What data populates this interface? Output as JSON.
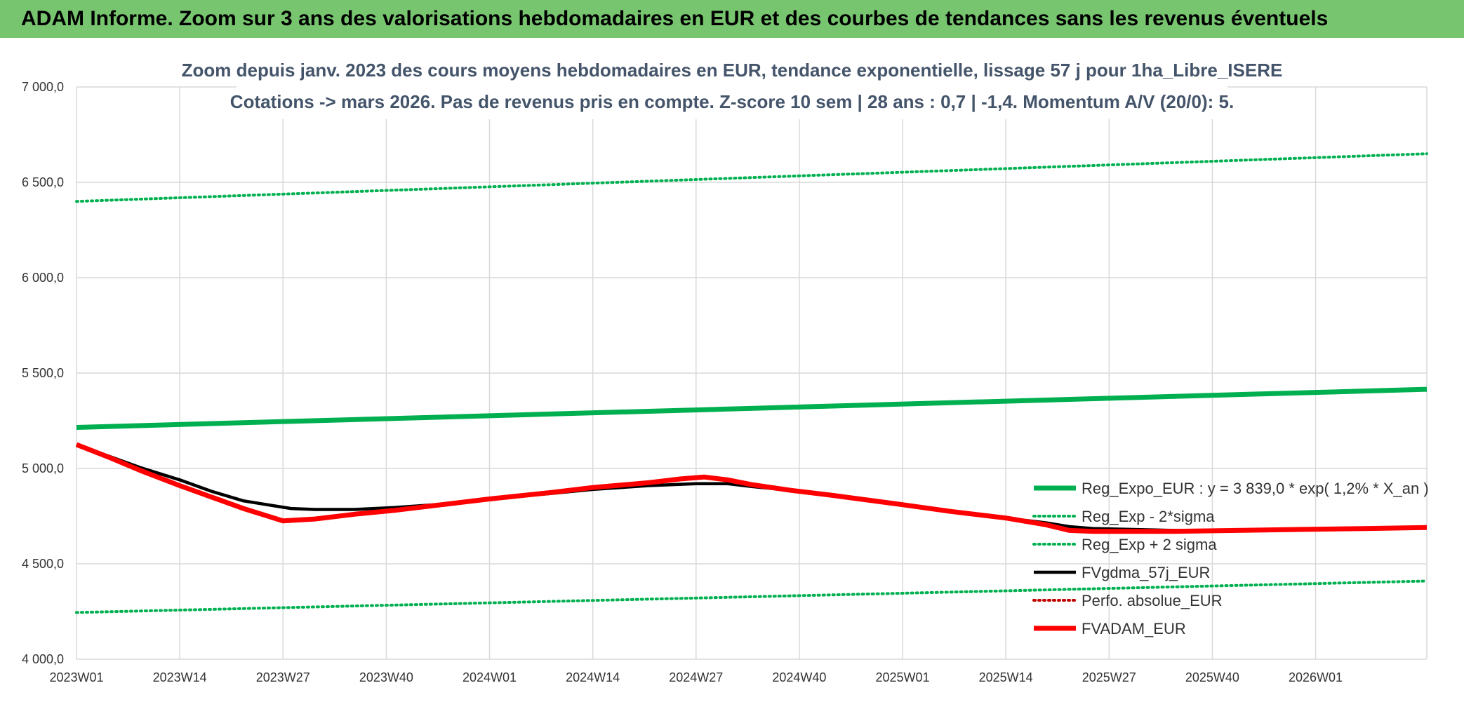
{
  "banner": {
    "title": "ADAM Informe. Zoom sur 3 ans des valorisations hebdomadaires en EUR et des courbes de tendances sans les revenus éventuels"
  },
  "colors": {
    "banner_bg": "#77c56f",
    "green": "#00b050",
    "black": "#000000",
    "red": "#ff0000",
    "dark_red": "#c00000",
    "grid": "#d9d9d9",
    "title_text": "#44546a"
  },
  "chart_data": {
    "type": "line",
    "title": "Zoom depuis janv. 2023 des cours moyens hebdomadaires en EUR, tendance exponentielle, lissage 57 j pour 1ha_Libre_ISERE",
    "subtitle": "Cotations -> mars 2026. Pas de revenus pris en compte. Z-score 10 sem | 28 ans : 0,7 | -1,4. Momentum A/V (20/0): 5.",
    "xlabel": "",
    "ylabel": "",
    "ylim": [
      4000,
      7000
    ],
    "y_ticks": [
      "4 000,0",
      "4 500,0",
      "5 000,0",
      "5 500,0",
      "6 000,0",
      "6 500,0",
      "7 000,0"
    ],
    "y_tick_values": [
      4000,
      4500,
      5000,
      5500,
      6000,
      6500,
      7000
    ],
    "x_ticks": [
      "2023W01",
      "2023W14",
      "2023W27",
      "2023W40",
      "2024W01",
      "2024W14",
      "2024W27",
      "2024W40",
      "2025W01",
      "2025W14",
      "2025W27",
      "2025W40",
      "2026W01"
    ],
    "x_range_weeks": [
      0,
      170
    ],
    "grid": true,
    "legend_position": "bottom-right",
    "series": [
      {
        "name": "Reg_Expo_EUR : y = 3 839,0 * exp( 1,2% *  X_an )",
        "style": "solid-thick",
        "color": "#00b050",
        "x": [
          0,
          170
        ],
        "values": [
          5215,
          5415
        ]
      },
      {
        "name": "Reg_Exp - 2*sigma",
        "style": "dotted",
        "color": "#00b050",
        "x": [
          0,
          170
        ],
        "values": [
          4245,
          4410
        ]
      },
      {
        "name": "Reg_Exp + 2 sigma",
        "style": "dotted",
        "color": "#00b050",
        "x": [
          0,
          170
        ],
        "values": [
          6400,
          6650
        ]
      },
      {
        "name": "FVgdma_57j_EUR",
        "style": "solid",
        "color": "#000000",
        "x": [
          0,
          4,
          8,
          13,
          17,
          21,
          24,
          27,
          30,
          35,
          40,
          47,
          52,
          60,
          65,
          72,
          78,
          82,
          85,
          90,
          95,
          104,
          110,
          117,
          122,
          125,
          128,
          133,
          138,
          146,
          154,
          162,
          170
        ],
        "values": [
          5125,
          5065,
          5005,
          4940,
          4880,
          4830,
          4810,
          4790,
          4785,
          4785,
          4795,
          4815,
          4840,
          4870,
          4890,
          4910,
          4920,
          4920,
          4905,
          4885,
          4860,
          4810,
          4775,
          4740,
          4715,
          4695,
          4685,
          4680,
          4675,
          4675,
          4680,
          4685,
          4690
        ]
      },
      {
        "name": "Perfo. absolue_EUR",
        "style": "dotted",
        "color": "#c00000",
        "x": [],
        "values": []
      },
      {
        "name": "FVADAM_EUR",
        "style": "solid-thick",
        "color": "#ff0000",
        "x": [
          0,
          4,
          8,
          13,
          17,
          21,
          26,
          30,
          35,
          40,
          47,
          52,
          60,
          65,
          72,
          76,
          79,
          82,
          85,
          90,
          95,
          104,
          110,
          117,
          122,
          125,
          128,
          133,
          138,
          146,
          154,
          162,
          170
        ],
        "values": [
          5125,
          5060,
          4990,
          4910,
          4850,
          4790,
          4725,
          4735,
          4760,
          4780,
          4815,
          4840,
          4875,
          4900,
          4925,
          4945,
          4955,
          4940,
          4915,
          4885,
          4860,
          4810,
          4775,
          4740,
          4705,
          4675,
          4670,
          4670,
          4670,
          4675,
          4680,
          4685,
          4690
        ]
      }
    ]
  }
}
